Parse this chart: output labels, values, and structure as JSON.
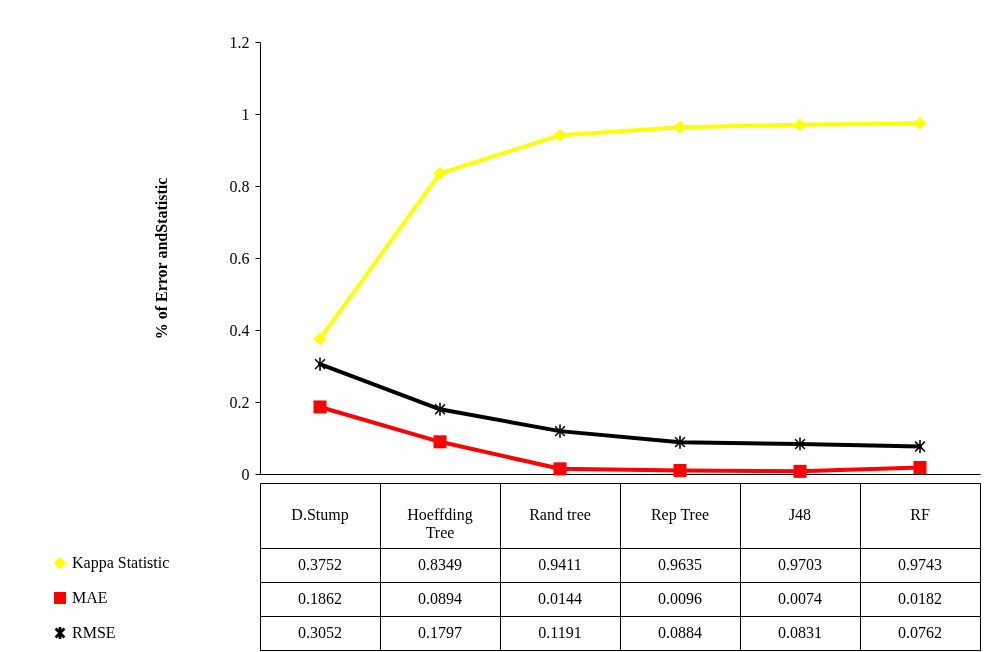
{
  "chart_data": {
    "type": "line",
    "ylabel": "% of Error andStatistic",
    "categories": [
      "D.Stump",
      "Hoeffding Tree",
      "Rand tree",
      "Rep Tree",
      "J48",
      "RF"
    ],
    "series": [
      {
        "name": "Kappa Statistic",
        "color": "#ffff00",
        "marker": "diamond",
        "values": [
          0.3752,
          0.8349,
          0.9411,
          0.9635,
          0.9703,
          0.9743
        ]
      },
      {
        "name": "MAE",
        "color": "#ff0000",
        "marker": "square",
        "values": [
          0.1862,
          0.0894,
          0.0144,
          0.0096,
          0.0074,
          0.0182
        ]
      },
      {
        "name": "RMSE",
        "color": "#000000",
        "marker": "cross",
        "values": [
          0.3052,
          0.1797,
          0.1191,
          0.0884,
          0.0831,
          0.0762
        ]
      }
    ],
    "ylim": [
      0,
      1.2
    ],
    "yticks": [
      0,
      0.2,
      0.4,
      0.6,
      0.8,
      1,
      1.2
    ],
    "data_labels": true,
    "legend": "bottom left"
  }
}
